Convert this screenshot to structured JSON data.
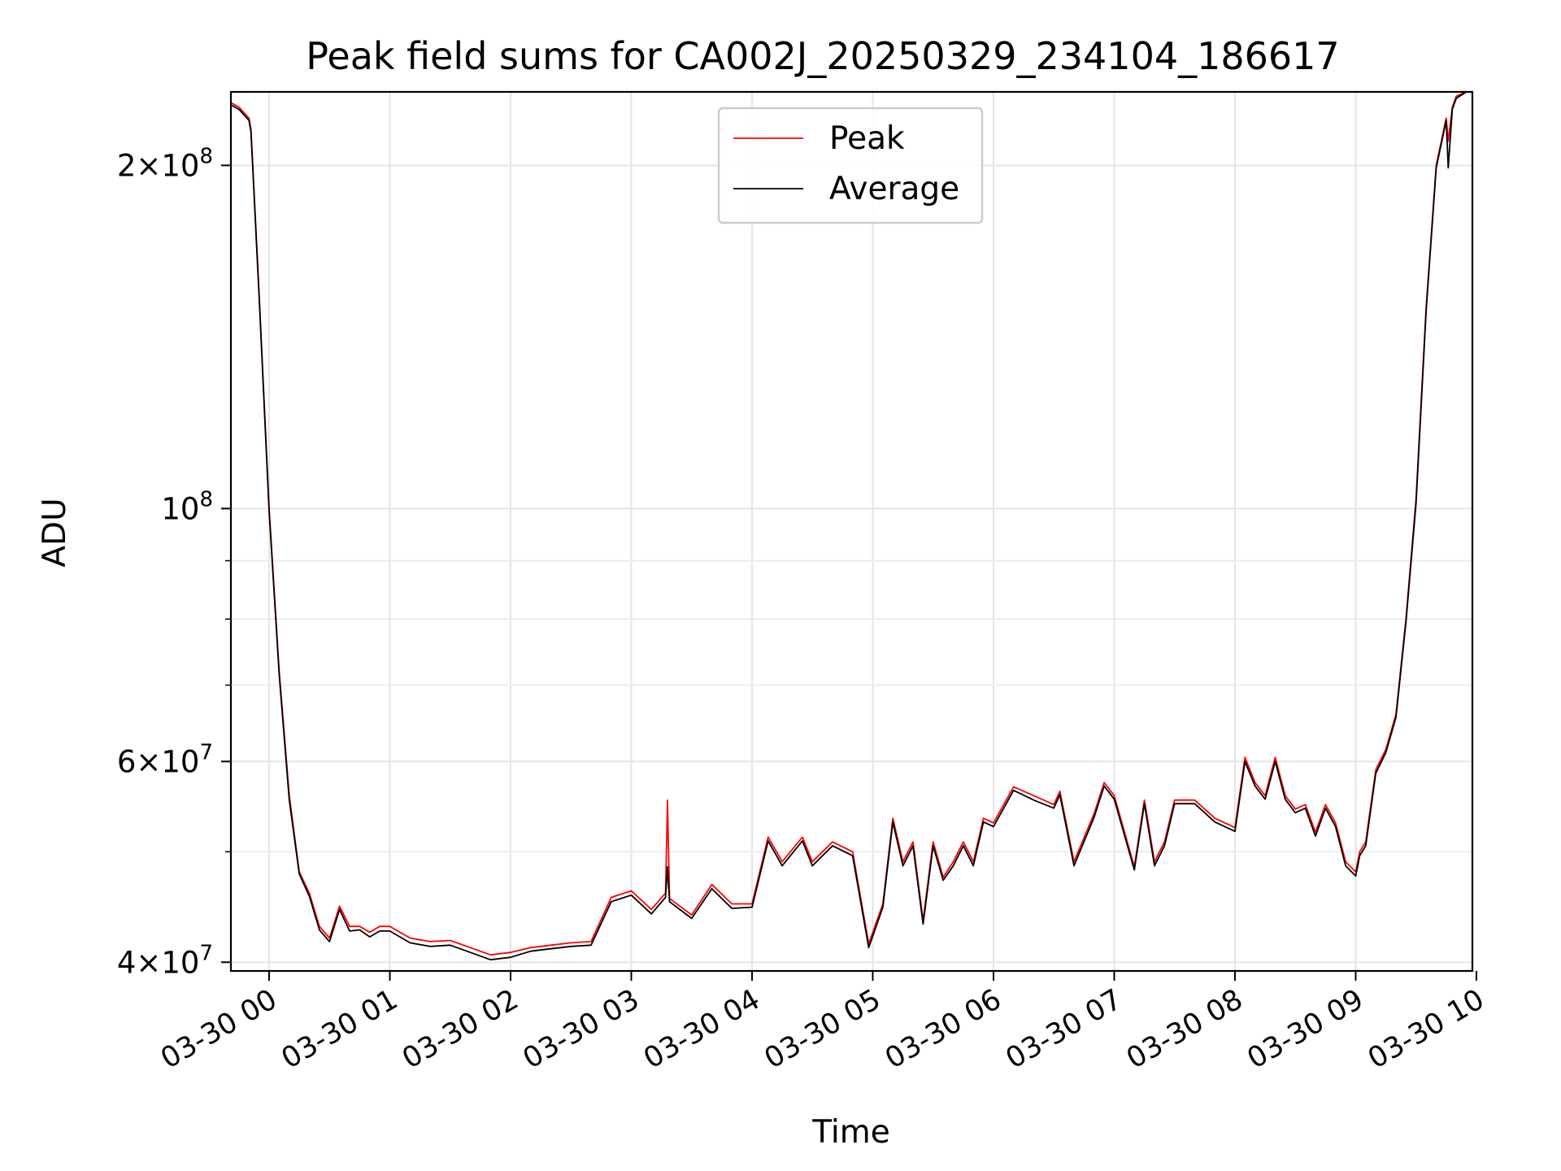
{
  "chart_data": {
    "type": "line",
    "title": "Peak field sums for CA002J_20250329_234104_186617",
    "xlabel": "Time",
    "ylabel": "ADU",
    "y_scale": "log",
    "xlim": [
      "2025-03-29T23:41",
      "2025-03-30T09:58"
    ],
    "ylim": [
      39300000,
      232000000
    ],
    "grid": true,
    "legend_placement": "upper center",
    "x_ticks": [
      {
        "t": "2025-03-30T00:00",
        "label": "03-30 00"
      },
      {
        "t": "2025-03-30T01:00",
        "label": "03-30 01"
      },
      {
        "t": "2025-03-30T02:00",
        "label": "03-30 02"
      },
      {
        "t": "2025-03-30T03:00",
        "label": "03-30 03"
      },
      {
        "t": "2025-03-30T04:00",
        "label": "03-30 04"
      },
      {
        "t": "2025-03-30T05:00",
        "label": "03-30 05"
      },
      {
        "t": "2025-03-30T06:00",
        "label": "03-30 06"
      },
      {
        "t": "2025-03-30T07:00",
        "label": "03-30 07"
      },
      {
        "t": "2025-03-30T08:00",
        "label": "03-30 08"
      },
      {
        "t": "2025-03-30T09:00",
        "label": "03-30 09"
      },
      {
        "t": "2025-03-30T10:00",
        "label": "03-30 10"
      }
    ],
    "y_major_ticks": [
      {
        "value": 40000000,
        "mantissa": "4",
        "exponent": "7"
      },
      {
        "value": 60000000,
        "mantissa": "6",
        "exponent": "7"
      },
      {
        "value": 100000000,
        "mantissa": "",
        "exponent": "8"
      },
      {
        "value": 200000000,
        "mantissa": "2",
        "exponent": "8"
      }
    ],
    "y_minor_ticks": [
      50000000,
      70000000,
      80000000,
      90000000
    ],
    "series": [
      {
        "name": "Peak",
        "color": "#ff0000",
        "x": [
          "2025-03-29T23:41",
          "2025-03-29T23:45",
          "2025-03-29T23:50",
          "2025-03-29T23:51",
          "2025-03-29T23:55",
          "2025-03-30T00:00",
          "2025-03-30T00:05",
          "2025-03-30T00:10",
          "2025-03-30T00:15",
          "2025-03-30T00:20",
          "2025-03-30T00:25",
          "2025-03-30T00:30",
          "2025-03-30T00:35",
          "2025-03-30T00:40",
          "2025-03-30T00:45",
          "2025-03-30T00:50",
          "2025-03-30T00:55",
          "2025-03-30T01:00",
          "2025-03-30T01:10",
          "2025-03-30T01:20",
          "2025-03-30T01:30",
          "2025-03-30T01:40",
          "2025-03-30T01:50",
          "2025-03-30T02:00",
          "2025-03-30T02:10",
          "2025-03-30T02:20",
          "2025-03-30T02:30",
          "2025-03-30T02:40",
          "2025-03-30T02:50",
          "2025-03-30T03:00",
          "2025-03-30T03:10",
          "2025-03-30T03:17",
          "2025-03-30T03:18",
          "2025-03-30T03:19",
          "2025-03-30T03:30",
          "2025-03-30T03:40",
          "2025-03-30T03:50",
          "2025-03-30T04:00",
          "2025-03-30T04:08",
          "2025-03-30T04:15",
          "2025-03-30T04:25",
          "2025-03-30T04:30",
          "2025-03-30T04:40",
          "2025-03-30T04:50",
          "2025-03-30T04:58",
          "2025-03-30T05:05",
          "2025-03-30T05:10",
          "2025-03-30T05:15",
          "2025-03-30T05:20",
          "2025-03-30T05:25",
          "2025-03-30T05:30",
          "2025-03-30T05:35",
          "2025-03-30T05:40",
          "2025-03-30T05:45",
          "2025-03-30T05:50",
          "2025-03-30T05:55",
          "2025-03-30T06:00",
          "2025-03-30T06:10",
          "2025-03-30T06:20",
          "2025-03-30T06:30",
          "2025-03-30T06:33",
          "2025-03-30T06:40",
          "2025-03-30T06:50",
          "2025-03-30T06:55",
          "2025-03-30T07:00",
          "2025-03-30T07:10",
          "2025-03-30T07:15",
          "2025-03-30T07:20",
          "2025-03-30T07:25",
          "2025-03-30T07:30",
          "2025-03-30T07:40",
          "2025-03-30T07:50",
          "2025-03-30T08:00",
          "2025-03-30T08:05",
          "2025-03-30T08:10",
          "2025-03-30T08:15",
          "2025-03-30T08:20",
          "2025-03-30T08:25",
          "2025-03-30T08:30",
          "2025-03-30T08:35",
          "2025-03-30T08:40",
          "2025-03-30T08:45",
          "2025-03-30T08:50",
          "2025-03-30T08:55",
          "2025-03-30T09:00",
          "2025-03-30T09:02",
          "2025-03-30T09:05",
          "2025-03-30T09:10",
          "2025-03-30T09:15",
          "2025-03-30T09:20",
          "2025-03-30T09:25",
          "2025-03-30T09:30",
          "2025-03-30T09:35",
          "2025-03-30T09:40",
          "2025-03-30T09:45",
          "2025-03-30T09:46",
          "2025-03-30T09:48",
          "2025-03-30T09:50",
          "2025-03-30T09:55",
          "2025-03-30T09:58"
        ],
        "y": [
          227000000,
          225000000,
          220000000,
          215000000,
          155000000,
          100000000,
          72000000,
          56000000,
          48000000,
          46000000,
          43000000,
          42000000,
          44800000,
          43000000,
          43000000,
          42500000,
          43000000,
          43000000,
          42000000,
          41700000,
          41800000,
          41200000,
          40600000,
          40800000,
          41200000,
          41400000,
          41600000,
          41700000,
          45600000,
          46200000,
          44500000,
          46000000,
          55500000,
          45500000,
          44000000,
          46800000,
          45000000,
          45000000,
          51500000,
          49000000,
          51500000,
          49000000,
          51000000,
          50000000,
          41500000,
          45000000,
          53500000,
          49000000,
          51000000,
          43500000,
          51000000,
          47500000,
          49000000,
          51000000,
          49000000,
          53500000,
          53000000,
          57000000,
          56000000,
          55000000,
          56500000,
          49000000,
          54000000,
          57500000,
          56000000,
          48500000,
          55500000,
          49000000,
          51000000,
          55500000,
          55500000,
          53500000,
          52500000,
          60500000,
          57500000,
          56000000,
          60500000,
          56000000,
          54500000,
          55000000,
          52000000,
          55000000,
          53000000,
          49000000,
          48000000,
          50000000,
          51000000,
          59000000,
          61500000,
          66000000,
          80000000,
          102000000,
          150000000,
          200000000,
          220000000,
          210000000,
          225000000,
          230000000,
          232000000,
          232000000
        ]
      },
      {
        "name": "Average",
        "color": "#000000",
        "x": [
          "2025-03-29T23:41",
          "2025-03-29T23:45",
          "2025-03-29T23:50",
          "2025-03-29T23:51",
          "2025-03-29T23:55",
          "2025-03-30T00:00",
          "2025-03-30T00:05",
          "2025-03-30T00:10",
          "2025-03-30T00:15",
          "2025-03-30T00:20",
          "2025-03-30T00:25",
          "2025-03-30T00:30",
          "2025-03-30T00:35",
          "2025-03-30T00:40",
          "2025-03-30T00:45",
          "2025-03-30T00:50",
          "2025-03-30T00:55",
          "2025-03-30T01:00",
          "2025-03-30T01:10",
          "2025-03-30T01:20",
          "2025-03-30T01:30",
          "2025-03-30T01:40",
          "2025-03-30T01:50",
          "2025-03-30T02:00",
          "2025-03-30T02:10",
          "2025-03-30T02:20",
          "2025-03-30T02:30",
          "2025-03-30T02:40",
          "2025-03-30T02:50",
          "2025-03-30T03:00",
          "2025-03-30T03:10",
          "2025-03-30T03:17",
          "2025-03-30T03:18",
          "2025-03-30T03:19",
          "2025-03-30T03:30",
          "2025-03-30T03:40",
          "2025-03-30T03:50",
          "2025-03-30T04:00",
          "2025-03-30T04:08",
          "2025-03-30T04:15",
          "2025-03-30T04:25",
          "2025-03-30T04:30",
          "2025-03-30T04:40",
          "2025-03-30T04:50",
          "2025-03-30T04:58",
          "2025-03-30T05:05",
          "2025-03-30T05:10",
          "2025-03-30T05:15",
          "2025-03-30T05:20",
          "2025-03-30T05:25",
          "2025-03-30T05:30",
          "2025-03-30T05:35",
          "2025-03-30T05:40",
          "2025-03-30T05:45",
          "2025-03-30T05:50",
          "2025-03-30T05:55",
          "2025-03-30T06:00",
          "2025-03-30T06:10",
          "2025-03-30T06:20",
          "2025-03-30T06:30",
          "2025-03-30T06:33",
          "2025-03-30T06:40",
          "2025-03-30T06:50",
          "2025-03-30T06:55",
          "2025-03-30T07:00",
          "2025-03-30T07:10",
          "2025-03-30T07:15",
          "2025-03-30T07:20",
          "2025-03-30T07:25",
          "2025-03-30T07:30",
          "2025-03-30T07:40",
          "2025-03-30T07:50",
          "2025-03-30T08:00",
          "2025-03-30T08:05",
          "2025-03-30T08:10",
          "2025-03-30T08:15",
          "2025-03-30T08:20",
          "2025-03-30T08:25",
          "2025-03-30T08:30",
          "2025-03-30T08:35",
          "2025-03-30T08:40",
          "2025-03-30T08:45",
          "2025-03-30T08:50",
          "2025-03-30T08:55",
          "2025-03-30T09:00",
          "2025-03-30T09:02",
          "2025-03-30T09:05",
          "2025-03-30T09:10",
          "2025-03-30T09:15",
          "2025-03-30T09:20",
          "2025-03-30T09:25",
          "2025-03-30T09:30",
          "2025-03-30T09:35",
          "2025-03-30T09:40",
          "2025-03-30T09:45",
          "2025-03-30T09:46",
          "2025-03-30T09:48",
          "2025-03-30T09:50",
          "2025-03-30T09:55",
          "2025-03-30T09:58"
        ],
        "y": [
          226000000,
          224000000,
          219000000,
          214000000,
          154000000,
          99500000,
          71500000,
          55500000,
          47800000,
          45700000,
          42700000,
          41700000,
          44500000,
          42600000,
          42700000,
          42100000,
          42600000,
          42600000,
          41600000,
          41300000,
          41400000,
          40800000,
          40200000,
          40400000,
          40900000,
          41100000,
          41300000,
          41400000,
          45200000,
          45800000,
          44100000,
          45600000,
          48500000,
          45200000,
          43700000,
          46400000,
          44600000,
          44700000,
          51100000,
          48600000,
          51100000,
          48600000,
          50600000,
          49600000,
          41200000,
          44700000,
          53100000,
          48600000,
          50600000,
          43200000,
          50600000,
          47200000,
          48600000,
          50600000,
          48600000,
          53100000,
          52600000,
          56600000,
          55500000,
          54600000,
          56100000,
          48600000,
          53600000,
          57100000,
          55600000,
          48200000,
          55100000,
          48600000,
          50600000,
          55100000,
          55100000,
          53100000,
          52100000,
          60000000,
          57100000,
          55600000,
          60000000,
          55600000,
          54100000,
          54600000,
          51600000,
          54600000,
          52600000,
          48600000,
          47600000,
          49600000,
          50600000,
          58600000,
          61100000,
          65600000,
          79500000,
          101000000,
          149000000,
          199000000,
          219000000,
          199000000,
          224000000,
          229000000,
          232000000,
          232000000
        ]
      }
    ]
  }
}
